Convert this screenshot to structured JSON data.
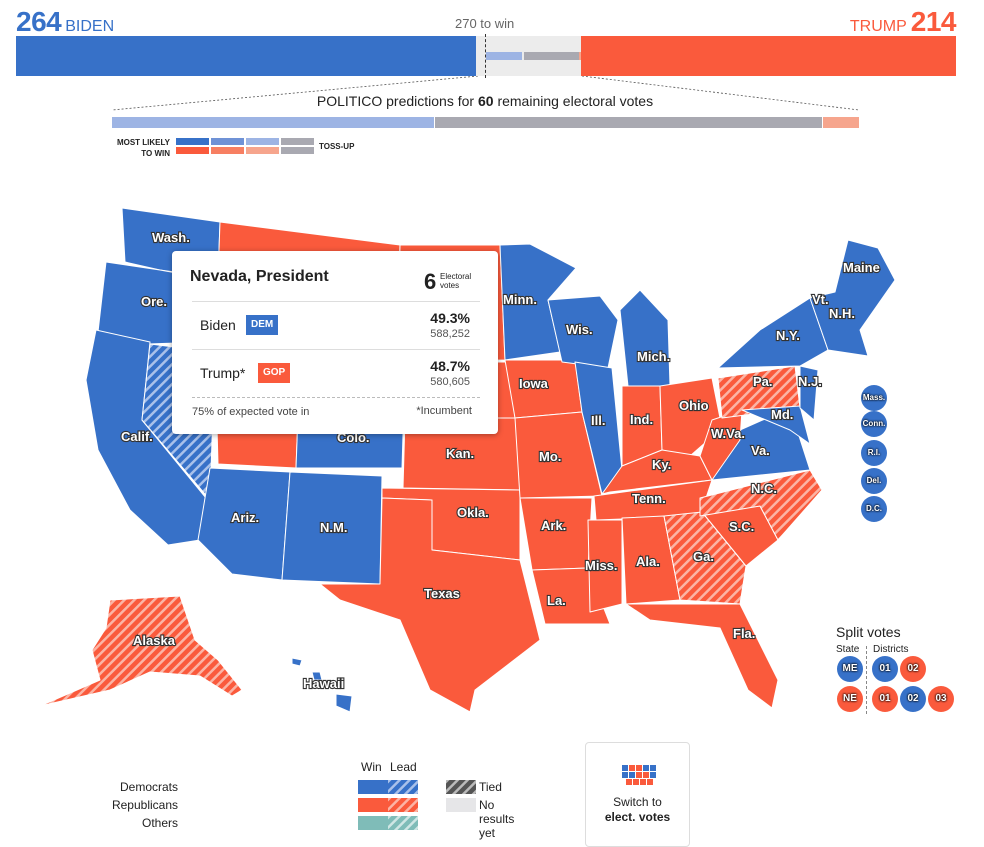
{
  "header": {
    "biden_score": "264",
    "biden_name": "BIDEN",
    "trump_name": "TRUMP",
    "trump_score": "214",
    "to_win": "270 to win"
  },
  "predictions": {
    "prefix": "POLITICO predictions for",
    "count": "60",
    "suffix": "remaining electoral votes",
    "most_likely": "MOST LIKELY",
    "to_win": "TO WIN",
    "toss_up": "TOSS-UP"
  },
  "tooltip": {
    "title": "Nevada, President",
    "ev": "6",
    "ev_label_1": "Electoral",
    "ev_label_2": "votes",
    "candidates": [
      {
        "name": "Biden",
        "party": "DEM",
        "pct": "49.3%",
        "votes": "588,252"
      },
      {
        "name": "Trump*",
        "party": "GOP",
        "pct": "48.7%",
        "votes": "580,605"
      }
    ],
    "expected": "75% of expected vote in",
    "incumbent": "*Incumbent"
  },
  "states": {
    "wash": "Wash.",
    "ore": "Ore.",
    "calif": "Calif.",
    "colo": "Colo.",
    "ariz": "Ariz.",
    "nm": "N.M.",
    "texas": "Texas",
    "alaska": "Alaska",
    "hawaii": "Hawaii",
    "minn": "Minn.",
    "iowa": "Iowa",
    "kan": "Kan.",
    "okla": "Okla.",
    "mo": "Mo.",
    "ark": "Ark.",
    "la": "La.",
    "wis": "Wis.",
    "ill": "Ill.",
    "mich": "Mich.",
    "ind": "Ind.",
    "ohio": "Ohio",
    "ky": "Ky.",
    "tenn": "Tenn.",
    "miss": "Miss.",
    "ala": "Ala.",
    "ga": "Ga.",
    "fla": "Fla.",
    "sc": "S.C.",
    "nc": "N.C.",
    "va": "Va.",
    "wva": "W.Va.",
    "pa": "Pa.",
    "ny": "N.Y.",
    "nj": "N.J.",
    "md": "Md.",
    "vt": "Vt.",
    "nh": "N.H.",
    "maine": "Maine"
  },
  "small_states": [
    {
      "label": "Mass.",
      "party": "dem"
    },
    {
      "label": "Conn.",
      "party": "dem"
    },
    {
      "label": "R.I.",
      "party": "dem"
    },
    {
      "label": "Del.",
      "party": "dem"
    },
    {
      "label": "D.C.",
      "party": "dem"
    }
  ],
  "split_votes": {
    "title": "Split votes",
    "state": "State",
    "districts": "Districts",
    "maine": [
      {
        "label": "ME",
        "party": "dem"
      },
      {
        "label": "01",
        "party": "dem"
      },
      {
        "label": "02",
        "party": "rep"
      }
    ],
    "nebraska": [
      {
        "label": "NE",
        "party": "rep"
      },
      {
        "label": "01",
        "party": "rep"
      },
      {
        "label": "02",
        "party": "dem"
      },
      {
        "label": "03",
        "party": "rep"
      }
    ]
  },
  "legend": {
    "win": "Win",
    "lead": "Lead",
    "democrats": "Democrats",
    "republicans": "Republicans",
    "others": "Others",
    "tied": "Tied",
    "no_results": "No results yet"
  },
  "switch": {
    "line1": "Switch to",
    "line2": "elect. votes"
  },
  "colors": {
    "dem": "#3771c8",
    "rep": "#fa5a3c",
    "dem_light": "#9db4e4",
    "rep_light": "#f6a58d",
    "toss": "#a9a9b1",
    "other": "#7fbcb8"
  }
}
